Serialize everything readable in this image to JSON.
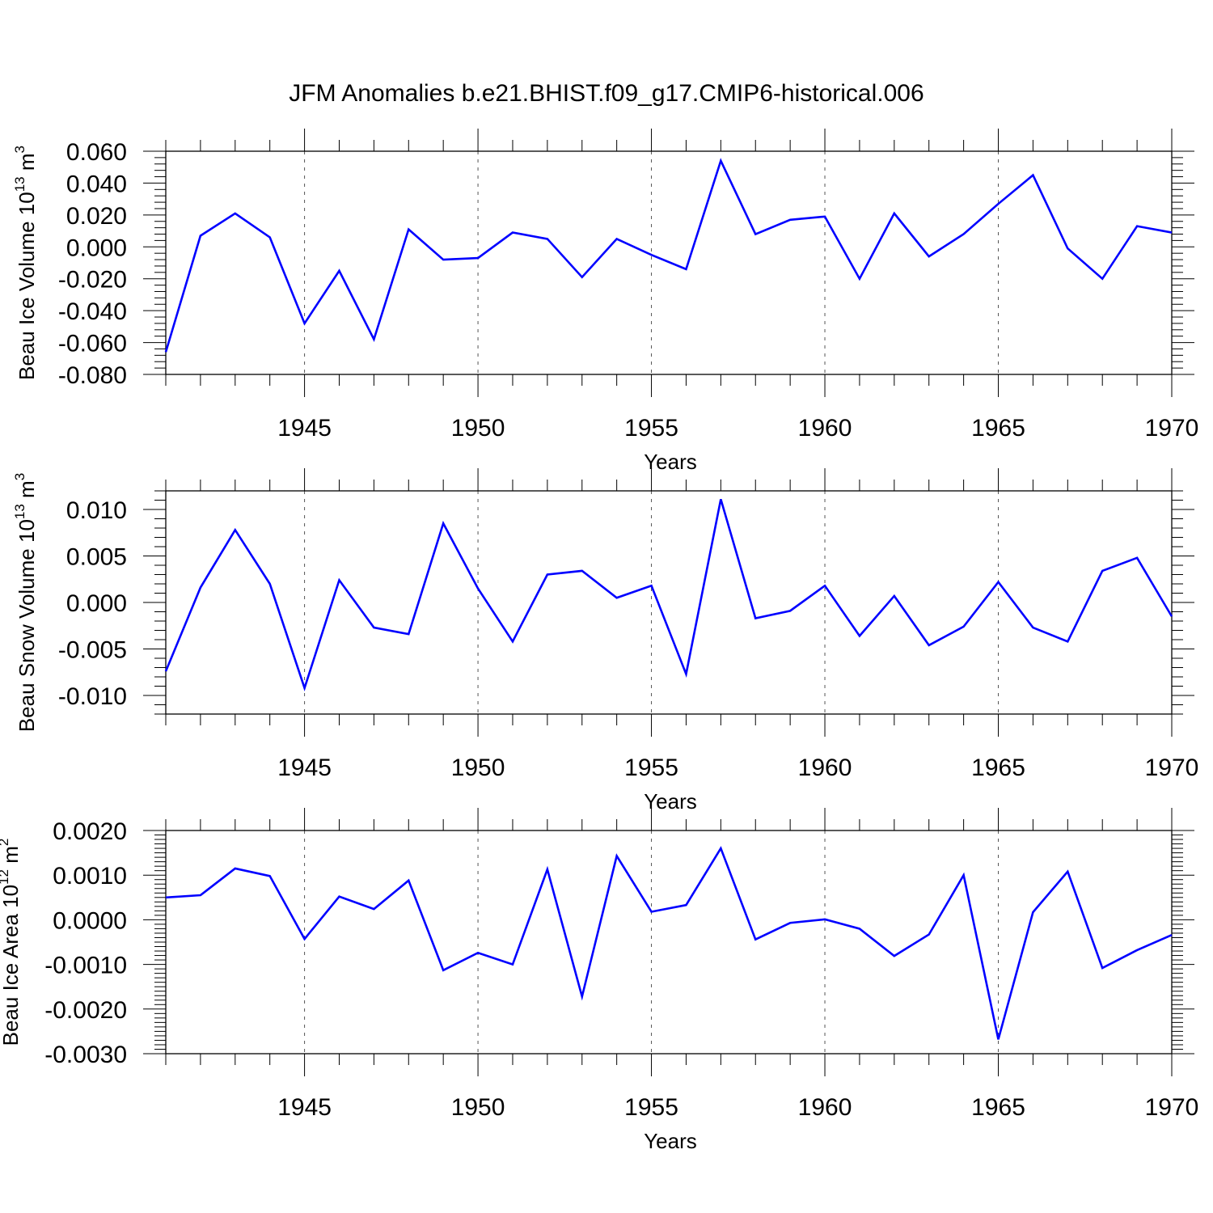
{
  "figure": {
    "title": "JFM Anomalies b.e21.BHIST.f09_g17.CMIP6-historical.006"
  },
  "style": {
    "line_color": "#0000ff",
    "axis_color": "#000000",
    "grid_color": "#555555"
  },
  "chart_data": [
    {
      "type": "line",
      "ylabel": {
        "text": "Beau Ice Volume 10",
        "exponent": "13",
        "unit": " m",
        "unit_exponent": "3"
      },
      "xlabel": "Years",
      "xlim": [
        1941,
        1970
      ],
      "ylim": [
        -0.08,
        0.06
      ],
      "yticks": [
        -0.08,
        -0.06,
        -0.04,
        -0.02,
        0.0,
        0.02,
        0.04,
        0.06
      ],
      "ytick_labels": [
        "-0.080",
        "-0.060",
        "-0.040",
        "-0.020",
        "0.000",
        "0.020",
        "0.040",
        "0.060"
      ],
      "xticks": [
        1945,
        1950,
        1955,
        1960,
        1965,
        1970
      ],
      "xtick_labels": [
        "1945",
        "1950",
        "1955",
        "1960",
        "1965",
        "1970"
      ],
      "grid": "vertical dashed at major x ticks",
      "x": [
        1941,
        1942,
        1943,
        1944,
        1945,
        1946,
        1947,
        1948,
        1949,
        1950,
        1951,
        1952,
        1953,
        1954,
        1955,
        1956,
        1957,
        1958,
        1959,
        1960,
        1961,
        1962,
        1963,
        1964,
        1965,
        1966,
        1967,
        1968,
        1969,
        1970
      ],
      "series": [
        {
          "name": "Beau Ice Volume",
          "values": [
            -0.066,
            0.007,
            0.021,
            0.006,
            -0.048,
            -0.015,
            -0.058,
            0.011,
            -0.008,
            -0.007,
            0.009,
            0.005,
            -0.019,
            0.005,
            -0.005,
            -0.014,
            0.054,
            0.008,
            0.017,
            0.019,
            -0.02,
            0.021,
            -0.006,
            0.008,
            0.027,
            0.045,
            -0.001,
            -0.02,
            0.013,
            0.009
          ]
        }
      ]
    },
    {
      "type": "line",
      "ylabel": {
        "text": "Beau Snow Volume 10",
        "exponent": "13",
        "unit": " m",
        "unit_exponent": "3"
      },
      "xlabel": "Years",
      "xlim": [
        1941,
        1970
      ],
      "ylim": [
        -0.012,
        0.012
      ],
      "yticks": [
        -0.01,
        -0.005,
        0.0,
        0.005,
        0.01
      ],
      "ytick_labels": [
        "-0.010",
        "-0.005",
        "0.000",
        "0.005",
        "0.010"
      ],
      "xticks": [
        1945,
        1950,
        1955,
        1960,
        1965,
        1970
      ],
      "xtick_labels": [
        "1945",
        "1950",
        "1955",
        "1960",
        "1965",
        "1970"
      ],
      "grid": "vertical dashed at major x ticks",
      "x": [
        1941,
        1942,
        1943,
        1944,
        1945,
        1946,
        1947,
        1948,
        1949,
        1950,
        1951,
        1952,
        1953,
        1954,
        1955,
        1956,
        1957,
        1958,
        1959,
        1960,
        1961,
        1962,
        1963,
        1964,
        1965,
        1966,
        1967,
        1968,
        1969,
        1970
      ],
      "series": [
        {
          "name": "Beau Snow Volume",
          "values": [
            -0.0074,
            0.0016,
            0.0078,
            0.002,
            -0.0092,
            0.0024,
            -0.0027,
            -0.0034,
            0.0085,
            0.0015,
            -0.0042,
            0.003,
            0.0034,
            0.0005,
            0.0018,
            -0.0077,
            0.0111,
            -0.0017,
            -0.0009,
            0.0018,
            -0.0036,
            0.0007,
            -0.0046,
            -0.0026,
            0.0022,
            -0.0027,
            -0.0042,
            0.0034,
            0.0048,
            -0.0015
          ]
        }
      ]
    },
    {
      "type": "line",
      "ylabel": {
        "text": "Beau Ice Area 10",
        "exponent": "12",
        "unit": " m",
        "unit_exponent": "2"
      },
      "xlabel": "Years",
      "xlim": [
        1941,
        1970
      ],
      "ylim": [
        -0.003,
        0.002
      ],
      "yticks": [
        -0.003,
        -0.002,
        -0.001,
        0.0,
        0.001,
        0.002
      ],
      "ytick_labels": [
        "-0.0030",
        "-0.0020",
        "-0.0010",
        "0.0000",
        "0.0010",
        "0.0020"
      ],
      "xticks": [
        1945,
        1950,
        1955,
        1960,
        1965,
        1970
      ],
      "xtick_labels": [
        "1945",
        "1950",
        "1955",
        "1960",
        "1965",
        "1970"
      ],
      "grid": "vertical dashed at major x ticks",
      "x": [
        1941,
        1942,
        1943,
        1944,
        1945,
        1946,
        1947,
        1948,
        1949,
        1950,
        1951,
        1952,
        1953,
        1954,
        1955,
        1956,
        1957,
        1958,
        1959,
        1960,
        1961,
        1962,
        1963,
        1964,
        1965,
        1966,
        1967,
        1968,
        1969,
        1970
      ],
      "series": [
        {
          "name": "Beau Ice Area",
          "values": [
            0.0005,
            0.00055,
            0.00115,
            0.00098,
            -0.00043,
            0.00052,
            0.00024,
            0.00088,
            -0.00113,
            -0.00074,
            -0.001,
            0.00113,
            -0.00172,
            0.00143,
            0.00018,
            0.00033,
            0.0016,
            -0.00044,
            -7e-05,
            1e-05,
            -0.0002,
            -0.00081,
            -0.00033,
            0.001,
            -0.00268,
            0.00017,
            0.00108,
            -0.00108,
            -0.00068,
            -0.00034
          ]
        }
      ]
    }
  ]
}
